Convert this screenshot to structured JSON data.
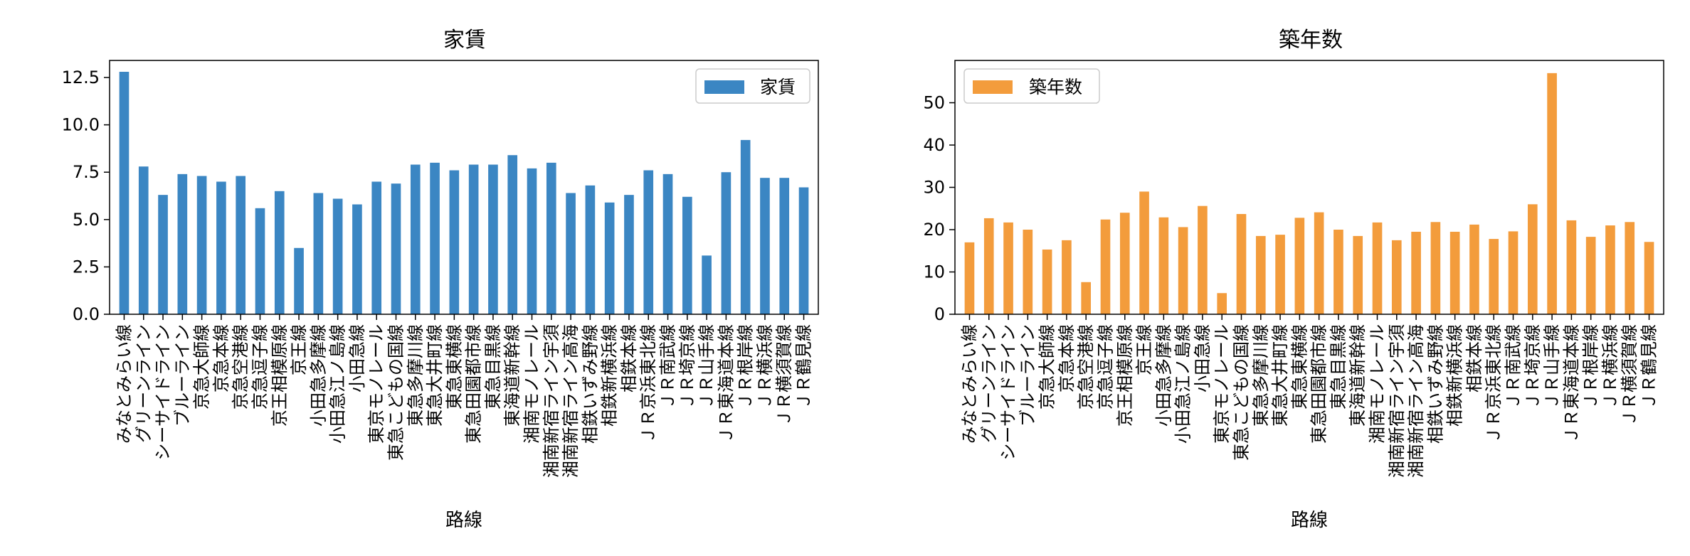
{
  "chart_data": [
    {
      "type": "bar",
      "title": "家賃",
      "xlabel": "路線",
      "ylabel": "",
      "ylim": [
        0,
        13.4
      ],
      "yticks": [
        "0.0",
        "2.5",
        "5.0",
        "7.5",
        "10.0",
        "12.5"
      ],
      "yticks_values": [
        0,
        2.5,
        5,
        7.5,
        10,
        12.5
      ],
      "legend": "top-right",
      "color": "#3b86c3",
      "series": [
        {
          "name": "家賃",
          "values": [
            12.8,
            7.8,
            6.3,
            7.4,
            7.3,
            7.0,
            7.3,
            5.6,
            6.5,
            3.5,
            6.4,
            6.1,
            5.8,
            7.0,
            6.9,
            7.9,
            8.0,
            7.6,
            7.9,
            7.9,
            8.4,
            7.7,
            8.0,
            6.4,
            6.8,
            5.9,
            6.3,
            7.6,
            7.4,
            6.2,
            3.1,
            7.5,
            9.2,
            7.2,
            7.2,
            6.7
          ]
        }
      ]
    },
    {
      "type": "bar",
      "title": "築年数",
      "xlabel": "路線",
      "ylabel": "",
      "ylim": [
        0,
        60
      ],
      "yticks": [
        "0",
        "10",
        "20",
        "30",
        "40",
        "50"
      ],
      "yticks_values": [
        0,
        10,
        20,
        30,
        40,
        50
      ],
      "legend": "top-left",
      "color": "#f39c3c",
      "series": [
        {
          "name": "築年数",
          "values": [
            17.0,
            22.7,
            21.7,
            20.0,
            15.3,
            17.5,
            7.6,
            22.4,
            24.0,
            29.0,
            22.9,
            20.6,
            25.6,
            5.0,
            23.7,
            18.5,
            18.8,
            22.8,
            24.1,
            20.0,
            18.5,
            21.7,
            17.5,
            19.5,
            21.8,
            19.5,
            21.2,
            17.8,
            19.6,
            26.0,
            57.0,
            22.2,
            18.3,
            21.0,
            21.8,
            17.1
          ]
        }
      ]
    }
  ],
  "categories": [
    "みなとみらい線",
    "グリーンライン",
    "シーサイドライン",
    "ブルーライン",
    "京急大師線",
    "京急本線",
    "京急空港線",
    "京急逗子線",
    "京王相模原線",
    "京王線",
    "小田急多摩線",
    "小田急江ノ島線",
    "小田急線",
    "東京モノレール",
    "東急こどもの国線",
    "東急多摩川線",
    "東急大井町線",
    "東急東横線",
    "東急田園都市線",
    "東急目黒線",
    "東海道新幹線",
    "湘南モノレール",
    "湘南新宿ライン宇須",
    "湘南新宿ライン高海",
    "相鉄いずみ野線",
    "相鉄新横浜線",
    "相鉄本線",
    "ＪＲ京浜東北線",
    "ＪＲ南武線",
    "ＪＲ埼京線",
    "ＪＲ山手線",
    "ＪＲ東海道本線",
    "ＪＲ根岸線",
    "ＪＲ横浜線",
    "ＪＲ横須賀線",
    "ＪＲ鶴見線"
  ]
}
